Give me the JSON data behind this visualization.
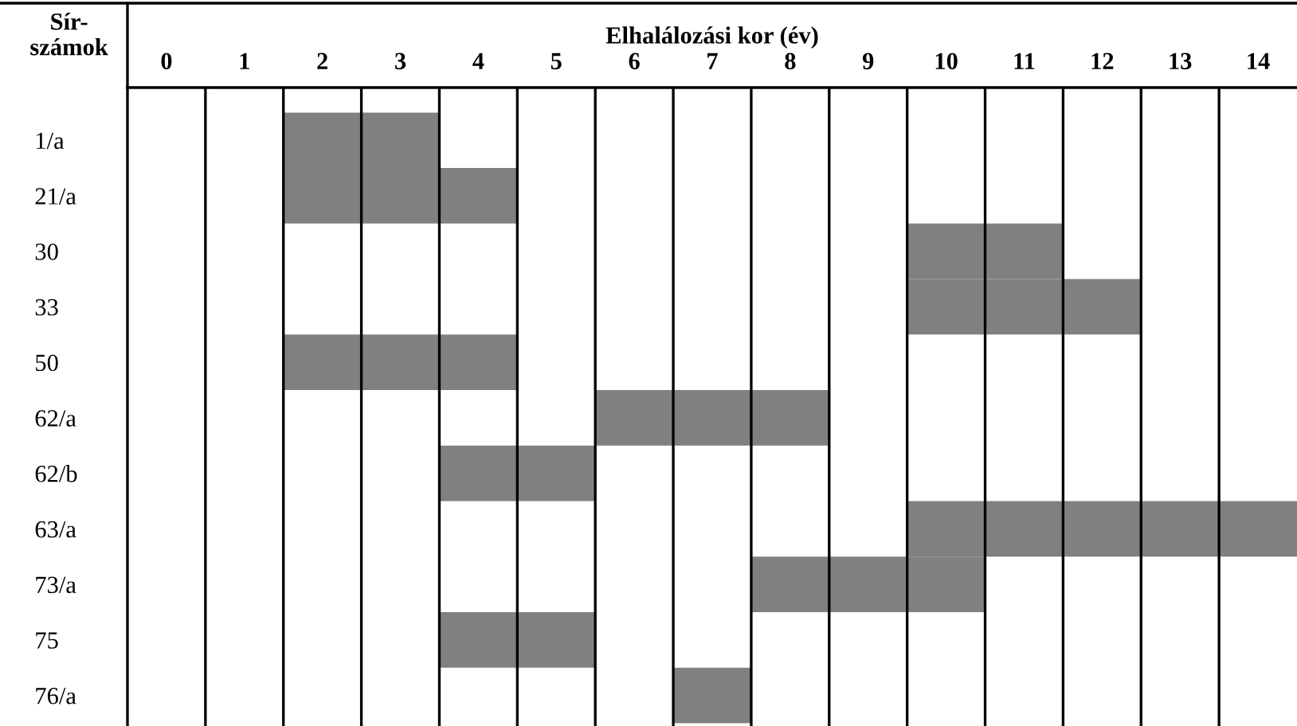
{
  "chart_data": {
    "type": "bar",
    "orientation": "horizontal",
    "xlabel": "Elhalálozási kor (év)",
    "ylabel": "Sír-\nszámok",
    "categories": [
      "1/a",
      "21/a",
      "30",
      "33",
      "50",
      "62/a",
      "62/b",
      "63/a",
      "73/a",
      "75",
      "76/a"
    ],
    "base": [
      2,
      2,
      10,
      10,
      2,
      6,
      4,
      10,
      8,
      4,
      7
    ],
    "values": [
      2,
      3,
      2,
      3,
      3,
      3,
      2,
      5,
      3,
      2,
      1
    ],
    "color": "#808080",
    "xlim": [
      0,
      15
    ],
    "xticks": [
      {
        "value": 0.5,
        "label": "0"
      },
      {
        "value": 1.5,
        "label": "1"
      },
      {
        "value": 2.5,
        "label": "2"
      },
      {
        "value": 3.5,
        "label": "3"
      },
      {
        "value": 4.5,
        "label": "4"
      },
      {
        "value": 5.5,
        "label": "5"
      },
      {
        "value": 6.5,
        "label": "6"
      },
      {
        "value": 7.5,
        "label": "7"
      },
      {
        "value": 8.5,
        "label": "8"
      },
      {
        "value": 9.5,
        "label": "9"
      },
      {
        "value": 10.5,
        "label": "10"
      },
      {
        "value": 11.5,
        "label": "11"
      },
      {
        "value": 12.5,
        "label": "12"
      },
      {
        "value": 13.5,
        "label": "13"
      },
      {
        "value": 14.5,
        "label": "14"
      }
    ],
    "ref_lines": [
      {
        "axis": "x",
        "value": 1,
        "color": "#000000"
      },
      {
        "axis": "x",
        "value": 2,
        "color": "#000000"
      },
      {
        "axis": "x",
        "value": 3,
        "color": "#000000"
      },
      {
        "axis": "x",
        "value": 4,
        "color": "#000000"
      },
      {
        "axis": "x",
        "value": 5,
        "color": "#000000"
      },
      {
        "axis": "x",
        "value": 6,
        "color": "#000000"
      },
      {
        "axis": "x",
        "value": 7,
        "color": "#000000"
      },
      {
        "axis": "x",
        "value": 8,
        "color": "#000000"
      },
      {
        "axis": "x",
        "value": 9,
        "color": "#000000"
      },
      {
        "axis": "x",
        "value": 10,
        "color": "#000000"
      },
      {
        "axis": "x",
        "value": 11,
        "color": "#000000"
      },
      {
        "axis": "x",
        "value": 12,
        "color": "#000000"
      },
      {
        "axis": "x",
        "value": 13,
        "color": "#000000"
      },
      {
        "axis": "x",
        "value": 14,
        "color": "#000000"
      }
    ]
  }
}
